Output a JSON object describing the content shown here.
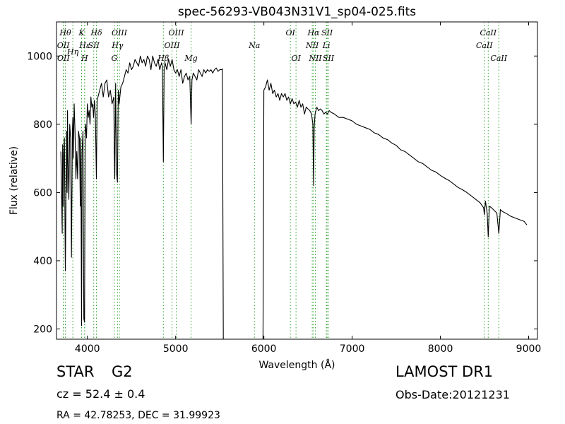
{
  "chart_data": {
    "type": "line",
    "title": "spec-56293-VB043N31V1_sp04-025.fits",
    "xlabel": "Wavelength (Å)",
    "ylabel": "Flux (relative)",
    "xlim": [
      3650,
      9100
    ],
    "ylim": [
      170,
      1100
    ],
    "xticks": [
      4000,
      5000,
      6000,
      7000,
      8000,
      9000
    ],
    "yticks": [
      200,
      400,
      600,
      800,
      1000
    ],
    "grid": false,
    "legend": "none",
    "line_color": "#000000",
    "marker_color": "#2ca02c",
    "spectral_lines": [
      {
        "label": "Hθ",
        "x": 3750,
        "row": 0
      },
      {
        "label": "K",
        "x": 3934,
        "row": 0
      },
      {
        "label": "Hδ",
        "x": 4102,
        "row": 0
      },
      {
        "label": "OIII",
        "x": 4363,
        "row": 0
      },
      {
        "label": "OIII",
        "x": 5007,
        "row": 0
      },
      {
        "label": "OI",
        "x": 6300,
        "row": 0
      },
      {
        "label": "Hα",
        "x": 6563,
        "row": 0
      },
      {
        "label": "SII",
        "x": 6716,
        "row": 0
      },
      {
        "label": "CaII",
        "x": 8542,
        "row": 0
      },
      {
        "label": "OII",
        "x": 3727,
        "row": 1
      },
      {
        "label": "Hη",
        "x": 3835,
        "row": 1.5
      },
      {
        "label": "Hε",
        "x": 3970,
        "row": 1
      },
      {
        "label": "SII",
        "x": 4072,
        "row": 1
      },
      {
        "label": "Hγ",
        "x": 4341,
        "row": 1
      },
      {
        "label": "OIII",
        "x": 4959,
        "row": 1
      },
      {
        "label": "Na",
        "x": 5893,
        "row": 1
      },
      {
        "label": "NII",
        "x": 6548,
        "row": 1
      },
      {
        "label": "Li",
        "x": 6708,
        "row": 1
      },
      {
        "label": "CaII",
        "x": 8498,
        "row": 1
      },
      {
        "label": "OII",
        "x": 3729,
        "row": 2
      },
      {
        "label": "H",
        "x": 3968,
        "row": 2
      },
      {
        "label": "G",
        "x": 4305,
        "row": 2
      },
      {
        "label": "Hβ",
        "x": 4861,
        "row": 2
      },
      {
        "label": "Mg",
        "x": 5175,
        "row": 2
      },
      {
        "label": "OI",
        "x": 6364,
        "row": 2
      },
      {
        "label": "NII",
        "x": 6583,
        "row": 2
      },
      {
        "label": "SII",
        "x": 6731,
        "row": 2
      },
      {
        "label": "CaII",
        "x": 8662,
        "row": 2
      }
    ],
    "series": [
      {
        "x": [
          3700,
          3715,
          3720,
          3725,
          3730,
          3740,
          3750,
          3760,
          3765,
          3770,
          3775,
          3780,
          3790,
          3800,
          3810,
          3820,
          3830,
          3835,
          3840,
          3850,
          3860,
          3870,
          3880,
          3889,
          3900,
          3910,
          3920,
          3925,
          3934,
          3940,
          3950,
          3960,
          3968,
          3975,
          3980,
          3990,
          4000,
          4010,
          4020,
          4030,
          4040,
          4050,
          4060,
          4070,
          4080,
          4090,
          4102,
          4110,
          4120,
          4140,
          4160,
          4180,
          4200,
          4220,
          4240,
          4260,
          4280,
          4300,
          4305,
          4310,
          4320,
          4330,
          4341,
          4350,
          4360,
          4380,
          4400,
          4420,
          4440,
          4460,
          4480,
          4500,
          4520,
          4540,
          4560,
          4580,
          4600,
          4620,
          4640,
          4660,
          4680,
          4700,
          4720,
          4740,
          4760,
          4780,
          4800,
          4820,
          4840,
          4850,
          4861,
          4870,
          4880,
          4900,
          4920,
          4940,
          4960,
          4980,
          5000,
          5020,
          5040,
          5060,
          5080,
          5100,
          5120,
          5140,
          5160,
          5175,
          5185,
          5200,
          5220,
          5240,
          5260,
          5280,
          5300,
          5320,
          5340,
          5360,
          5380,
          5400,
          5420,
          5440,
          5460,
          5480,
          5500,
          5520,
          5530,
          5535,
          5540
        ],
        "y": [
          720,
          480,
          740,
          560,
          700,
          760,
          370,
          640,
          780,
          600,
          840,
          700,
          580,
          800,
          760,
          410,
          780,
          820,
          700,
          860,
          780,
          640,
          720,
          640,
          780,
          760,
          560,
          760,
          210,
          720,
          780,
          230,
          220,
          780,
          800,
          760,
          860,
          820,
          840,
          800,
          880,
          850,
          860,
          820,
          870,
          830,
          640,
          870,
          880,
          900,
          920,
          880,
          920,
          930,
          880,
          900,
          860,
          880,
          720,
          640,
          920,
          660,
          630,
          900,
          860,
          910,
          920,
          940,
          960,
          950,
          980,
          960,
          970,
          990,
          980,
          970,
          1000,
          980,
          990,
          970,
          1000,
          990,
          960,
          1000,
          980,
          970,
          990,
          960,
          980,
          970,
          690,
          960,
          980,
          960,
          990,
          970,
          990,
          960,
          950,
          960,
          940,
          960,
          920,
          940,
          950,
          930,
          940,
          800,
          930,
          950,
          940,
          930,
          960,
          950,
          940,
          960,
          950,
          960,
          955,
          960,
          950,
          960,
          965,
          955,
          960,
          960,
          962,
          600,
          170
        ],
        "color": "#000000"
      },
      {
        "x": [
          5990,
          5995,
          6000,
          6020,
          6040,
          6060,
          6080,
          6100,
          6120,
          6140,
          6160,
          6180,
          6200,
          6220,
          6240,
          6260,
          6280,
          6300,
          6320,
          6340,
          6360,
          6380,
          6400,
          6420,
          6440,
          6460,
          6480,
          6500,
          6520,
          6540,
          6555,
          6563,
          6570,
          6580,
          6600,
          6620,
          6640,
          6660,
          6680,
          6700,
          6720,
          6740,
          6760,
          6800,
          6850,
          6900,
          6950,
          7000,
          7050,
          7100,
          7150,
          7200,
          7250,
          7300,
          7350,
          7400,
          7450,
          7500,
          7550,
          7600,
          7650,
          7700,
          7750,
          7800,
          7850,
          7900,
          7950,
          8000,
          8050,
          8100,
          8150,
          8200,
          8250,
          8300,
          8350,
          8400,
          8450,
          8490,
          8498,
          8510,
          8530,
          8542,
          8555,
          8580,
          8600,
          8620,
          8640,
          8662,
          8680,
          8700,
          8750,
          8800,
          8850,
          8900,
          8950,
          8980
        ],
        "y": [
          170,
          500,
          900,
          910,
          930,
          900,
          920,
          890,
          900,
          880,
          890,
          870,
          890,
          880,
          890,
          870,
          880,
          860,
          875,
          860,
          865,
          850,
          870,
          850,
          860,
          830,
          850,
          845,
          840,
          830,
          800,
          620,
          790,
          830,
          850,
          840,
          845,
          840,
          830,
          835,
          830,
          840,
          835,
          830,
          820,
          820,
          815,
          810,
          800,
          795,
          790,
          785,
          775,
          770,
          760,
          755,
          745,
          738,
          725,
          720,
          710,
          700,
          690,
          685,
          675,
          665,
          660,
          650,
          642,
          635,
          625,
          615,
          608,
          600,
          590,
          580,
          570,
          555,
          535,
          575,
          540,
          470,
          560,
          555,
          550,
          545,
          540,
          480,
          550,
          545,
          538,
          530,
          525,
          520,
          515,
          505
        ],
        "color": "#000000"
      }
    ]
  },
  "info": {
    "object_class": "STAR",
    "subclass": "G2",
    "survey": "LAMOST DR1",
    "redshift": "cz = 52.4  ± 0.4",
    "obs_date": "Obs-Date:20121231",
    "coords": "RA = 42.78253, DEC = 31.99923"
  }
}
